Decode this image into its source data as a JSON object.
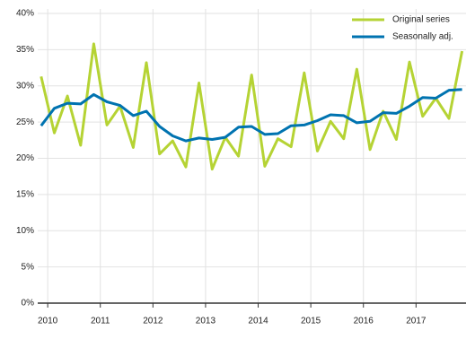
{
  "chart_data": {
    "type": "line",
    "x": [
      2009.875,
      2010.125,
      2010.375,
      2010.625,
      2010.875,
      2011.125,
      2011.375,
      2011.625,
      2011.875,
      2012.125,
      2012.375,
      2012.625,
      2012.875,
      2013.125,
      2013.375,
      2013.625,
      2013.875,
      2014.125,
      2014.375,
      2014.625,
      2014.875,
      2015.125,
      2015.375,
      2015.625,
      2015.875,
      2016.125,
      2016.375,
      2016.625,
      2016.875,
      2017.125,
      2017.375,
      2017.625,
      2017.875
    ],
    "series": [
      {
        "name": "Original series",
        "color": "#b5d334",
        "values": [
          31.3,
          23.5,
          28.6,
          21.8,
          35.8,
          24.6,
          27.2,
          21.5,
          33.2,
          20.6,
          22.4,
          18.8,
          30.4,
          18.5,
          22.9,
          20.3,
          31.5,
          18.9,
          22.7,
          21.6,
          31.8,
          21.0,
          25.1,
          22.7,
          32.3,
          21.2,
          26.5,
          22.6,
          33.3,
          25.8,
          28.3,
          25.5,
          34.8
        ]
      },
      {
        "name": "Seasonally adj.",
        "color": "#0073b0",
        "values": [
          24.5,
          26.9,
          27.6,
          27.5,
          28.8,
          27.8,
          27.3,
          25.9,
          26.5,
          24.4,
          23.1,
          22.4,
          22.8,
          22.6,
          22.9,
          24.3,
          24.4,
          23.3,
          23.4,
          24.5,
          24.6,
          25.2,
          26.0,
          25.9,
          24.9,
          25.1,
          26.3,
          26.2,
          27.2,
          28.4,
          28.3,
          29.4,
          29.5
        ]
      }
    ],
    "xlim": [
      2009.81,
      2017.95
    ],
    "xticks": [
      2010,
      2011,
      2012,
      2013,
      2014,
      2015,
      2016,
      2017
    ],
    "ylim": [
      0,
      40
    ],
    "yticks": [
      {
        "value": 0,
        "label": "0%"
      },
      {
        "value": 5,
        "label": "5%"
      },
      {
        "value": 10,
        "label": "10%"
      },
      {
        "value": 15,
        "label": "15%"
      },
      {
        "value": 20,
        "label": "20%"
      },
      {
        "value": 25,
        "label": "25%"
      },
      {
        "value": 30,
        "label": "30%"
      },
      {
        "value": 35,
        "label": "35%"
      },
      {
        "value": 40,
        "label": "40%"
      }
    ],
    "grid": true,
    "legend": "top-right"
  }
}
